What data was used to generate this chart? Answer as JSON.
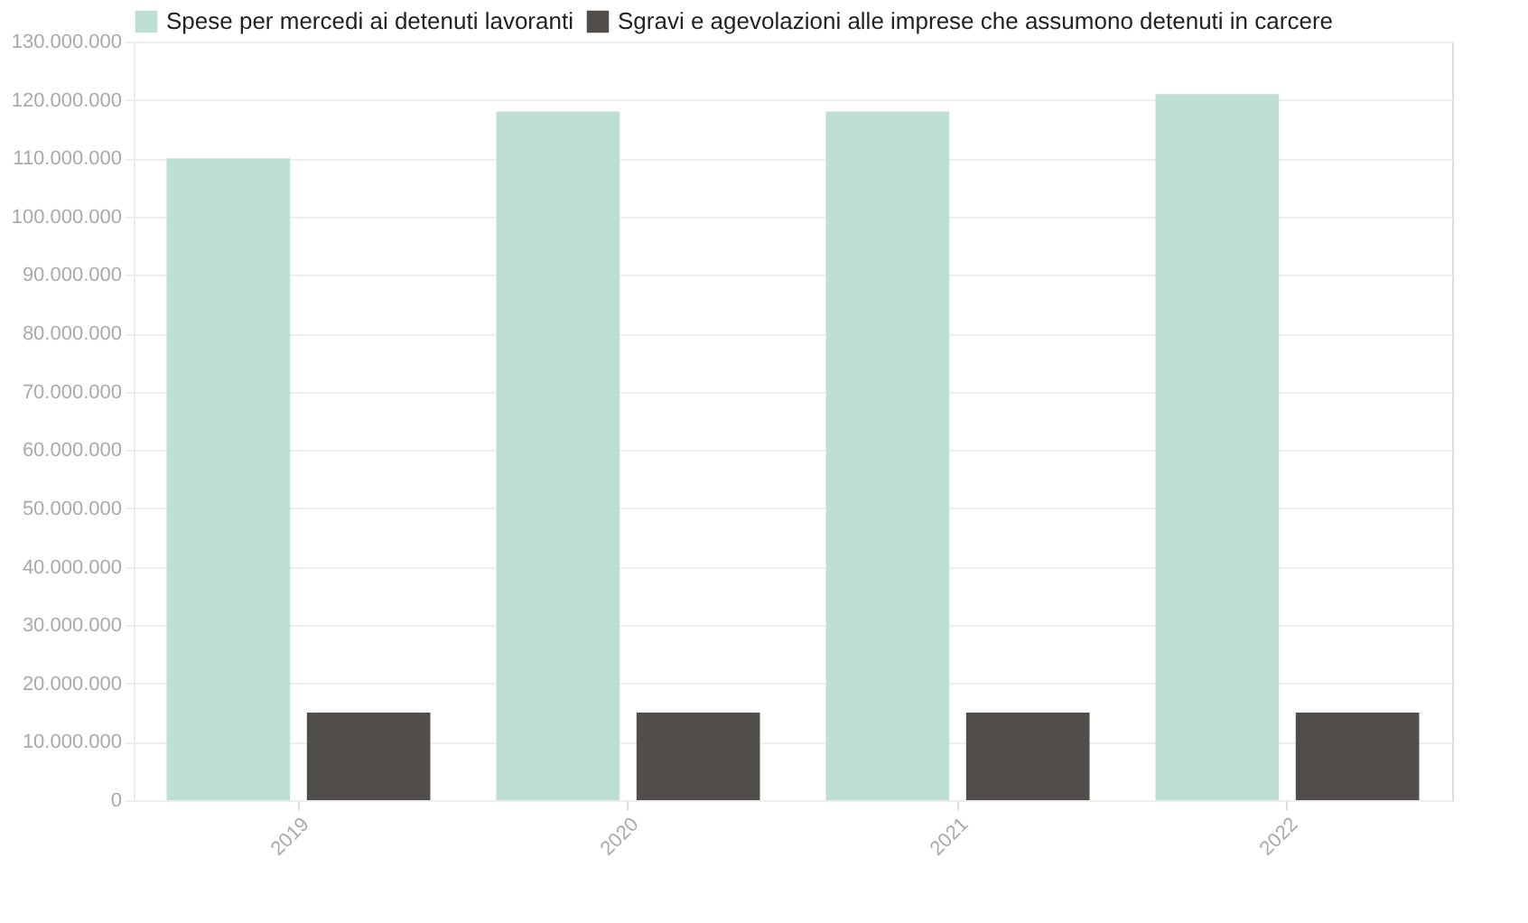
{
  "chart_data": {
    "type": "bar",
    "categories": [
      "2019",
      "2020",
      "2021",
      "2022"
    ],
    "series": [
      {
        "name": "Spese per mercedi ai detenuti lavoranti",
        "color": "#bde0d3",
        "values": [
          110000000,
          118000000,
          118000000,
          121000000
        ]
      },
      {
        "name": "Sgravi e agevolazioni alle imprese che assumono detenuti in carcere",
        "color": "#514d4b",
        "values": [
          15000000,
          15000000,
          15000000,
          15000000
        ]
      }
    ],
    "ylim": [
      0,
      130000000
    ],
    "yticks": [
      {
        "value": 0,
        "label": "0"
      },
      {
        "value": 10000000,
        "label": "10.000.000"
      },
      {
        "value": 20000000,
        "label": "20.000.000"
      },
      {
        "value": 30000000,
        "label": "30.000.000"
      },
      {
        "value": 40000000,
        "label": "40.000.000"
      },
      {
        "value": 50000000,
        "label": "50.000.000"
      },
      {
        "value": 60000000,
        "label": "60.000.000"
      },
      {
        "value": 70000000,
        "label": "70.000.000"
      },
      {
        "value": 80000000,
        "label": "80.000.000"
      },
      {
        "value": 90000000,
        "label": "90.000.000"
      },
      {
        "value": 100000000,
        "label": "100.000.000"
      },
      {
        "value": 110000000,
        "label": "110.000.000"
      },
      {
        "value": 120000000,
        "label": "120.000.000"
      },
      {
        "value": 130000000,
        "label": "130.000.000"
      }
    ],
    "grid": "y",
    "legend": "top left"
  }
}
